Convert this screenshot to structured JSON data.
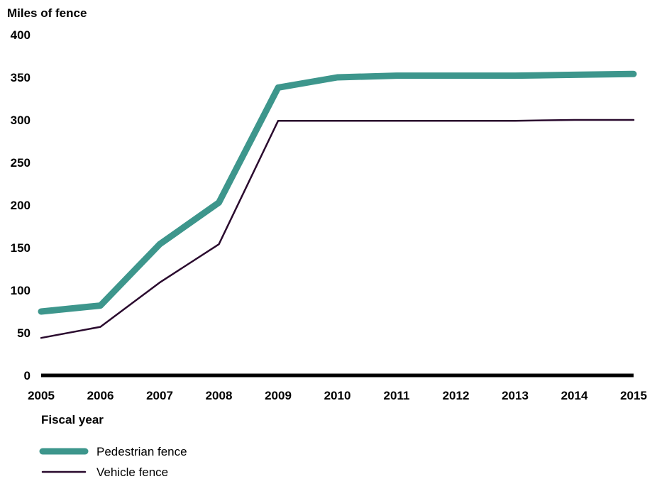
{
  "chart_data": {
    "type": "line",
    "title": "",
    "ylabel": "Miles of fence",
    "xlabel": "Fiscal year",
    "x": [
      2005,
      2006,
      2007,
      2008,
      2009,
      2010,
      2011,
      2012,
      2013,
      2014,
      2015
    ],
    "ylim": [
      0,
      400
    ],
    "yticks": [
      0,
      50,
      100,
      150,
      200,
      250,
      300,
      350,
      400
    ],
    "grid": false,
    "legend_position": "bottom-left",
    "series": [
      {
        "name": "Pedestrian fence",
        "color": "#3d968c",
        "values": [
          75,
          82,
          154,
          203,
          338,
          350,
          352,
          352,
          352,
          353,
          354
        ]
      },
      {
        "name": "Vehicle fence",
        "color": "#2a0a2e",
        "values": [
          44,
          57,
          109,
          154,
          299,
          299,
          299,
          299,
          299,
          300,
          300
        ]
      }
    ]
  }
}
